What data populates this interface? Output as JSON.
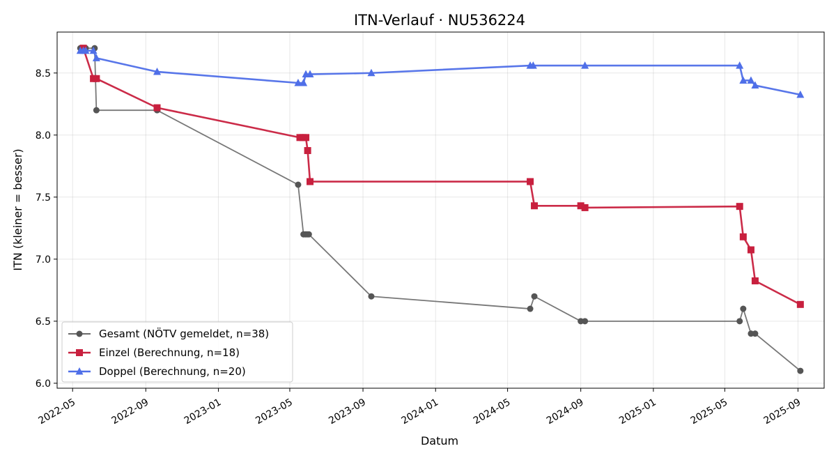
{
  "chart_data": {
    "type": "line",
    "title": "ITN-Verlauf · NU536224",
    "xlabel": "Datum",
    "ylabel": "ITN  (kleiner = besser)",
    "x_type": "date",
    "xlim": [
      "2022-04-05",
      "2025-10-15"
    ],
    "ylim": [
      5.96,
      8.83
    ],
    "x_ticks": [
      "2022-05",
      "2022-09",
      "2023-01",
      "2023-05",
      "2023-09",
      "2024-01",
      "2024-05",
      "2024-09",
      "2025-01",
      "2025-05",
      "2025-09"
    ],
    "y_ticks": [
      6.0,
      6.5,
      7.0,
      7.5,
      8.0,
      8.5
    ],
    "grid": true,
    "legend": "lower-left",
    "series": [
      {
        "name": "Gesamt (NÖTV gemeldet, n=38)",
        "color": "#555555",
        "marker": "circle",
        "points": [
          [
            "2022-05-14",
            8.7
          ],
          [
            "2022-05-19",
            8.7
          ],
          [
            "2022-05-23",
            8.7
          ],
          [
            "2022-06-07",
            8.7
          ],
          [
            "2022-06-10",
            8.2
          ],
          [
            "2022-09-20",
            8.2
          ],
          [
            "2023-05-15",
            7.6
          ],
          [
            "2023-05-24",
            7.2
          ],
          [
            "2023-05-27",
            7.2
          ],
          [
            "2023-05-30",
            7.2
          ],
          [
            "2023-06-02",
            7.2
          ],
          [
            "2023-09-15",
            6.7
          ],
          [
            "2024-06-08",
            6.6
          ],
          [
            "2024-06-15",
            6.7
          ],
          [
            "2024-09-01",
            6.5
          ],
          [
            "2024-09-08",
            6.5
          ],
          [
            "2025-05-26",
            6.5
          ],
          [
            "2025-06-01",
            6.6
          ],
          [
            "2025-06-14",
            6.4
          ],
          [
            "2025-06-21",
            6.4
          ],
          [
            "2025-09-05",
            6.1
          ]
        ]
      },
      {
        "name": "Einzel (Berechnung, n=18)",
        "color": "#c8203e",
        "marker": "square",
        "points": [
          [
            "2022-05-19",
            8.7
          ],
          [
            "2022-06-05",
            8.455
          ],
          [
            "2022-06-10",
            8.455
          ],
          [
            "2022-09-20",
            8.22
          ],
          [
            "2023-05-18",
            7.98
          ],
          [
            "2023-05-23",
            7.98
          ],
          [
            "2023-05-28",
            7.98
          ],
          [
            "2023-05-31",
            7.875
          ],
          [
            "2023-06-04",
            7.625
          ],
          [
            "2024-06-08",
            7.625
          ],
          [
            "2024-06-15",
            7.43
          ],
          [
            "2024-09-01",
            7.43
          ],
          [
            "2024-09-08",
            7.415
          ],
          [
            "2025-05-26",
            7.425
          ],
          [
            "2025-06-01",
            7.18
          ],
          [
            "2025-06-14",
            7.075
          ],
          [
            "2025-06-21",
            6.825
          ],
          [
            "2025-09-05",
            6.635
          ]
        ]
      },
      {
        "name": "Doppel (Berechnung, n=20)",
        "color": "#4f6fe8",
        "marker": "triangle",
        "points": [
          [
            "2022-05-14",
            8.68
          ],
          [
            "2022-05-19",
            8.68
          ],
          [
            "2022-05-23",
            8.68
          ],
          [
            "2022-06-05",
            8.68
          ],
          [
            "2022-06-10",
            8.62
          ],
          [
            "2022-09-20",
            8.51
          ],
          [
            "2023-05-15",
            8.42
          ],
          [
            "2023-05-24",
            8.42
          ],
          [
            "2023-05-28",
            8.49
          ],
          [
            "2023-06-04",
            8.49
          ],
          [
            "2023-09-15",
            8.5
          ],
          [
            "2024-06-08",
            8.56
          ],
          [
            "2024-06-13",
            8.56
          ],
          [
            "2024-09-08",
            8.56
          ],
          [
            "2025-05-26",
            8.56
          ],
          [
            "2025-06-01",
            8.44
          ],
          [
            "2025-06-14",
            8.44
          ],
          [
            "2025-06-21",
            8.4
          ],
          [
            "2025-09-05",
            8.325
          ]
        ]
      }
    ]
  }
}
